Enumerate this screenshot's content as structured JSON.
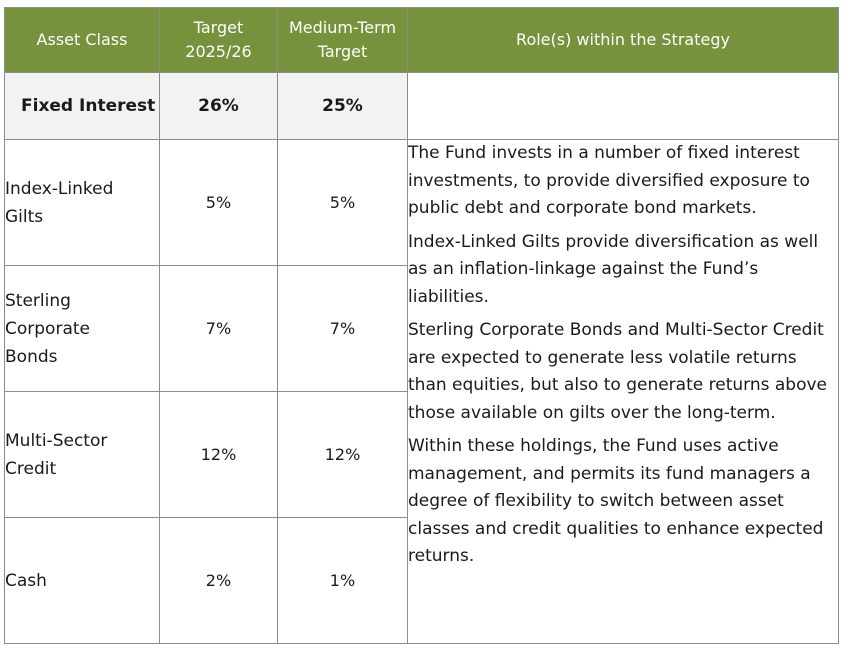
{
  "table": {
    "headers": {
      "asset_class": "Asset Class",
      "target_line1": "Target",
      "target_line2": "2025/26",
      "medium_line1": "Medium-Term",
      "medium_line2": "Target",
      "role": "Role(s) within the Strategy"
    },
    "summary": {
      "asset": "Fixed Interest",
      "target": "26%",
      "medium": "25%",
      "role": ""
    },
    "rows": [
      {
        "asset_line1": "Index-Linked",
        "asset_line2": "Gilts",
        "asset_line3": "",
        "target": "5%",
        "medium": "5%"
      },
      {
        "asset_line1": "Sterling",
        "asset_line2": "Corporate",
        "asset_line3": "Bonds",
        "target": "7%",
        "medium": "7%"
      },
      {
        "asset_line1": "Multi-Sector",
        "asset_line2": "Credit",
        "asset_line3": "",
        "target": "12%",
        "medium": "12%"
      },
      {
        "asset_line1": "Cash",
        "asset_line2": "",
        "asset_line3": "",
        "target": "2%",
        "medium": "1%"
      }
    ],
    "strategy_paragraphs": [
      "The Fund invests in a number of fixed interest investments, to provide diversified exposure to public debt and corporate bond markets.",
      "Index-Linked Gilts provide diversification as well as an inflation-linkage against the Fund’s liabilities.",
      "Sterling Corporate Bonds and Multi-Sector Credit are expected to generate less volatile returns than equities, but also to generate returns above those available on gilts over the long-term.",
      "Within these holdings, the Fund uses active management, and permits its fund managers a degree of flexibility to switch between asset classes and credit qualities to enhance expected returns."
    ]
  }
}
